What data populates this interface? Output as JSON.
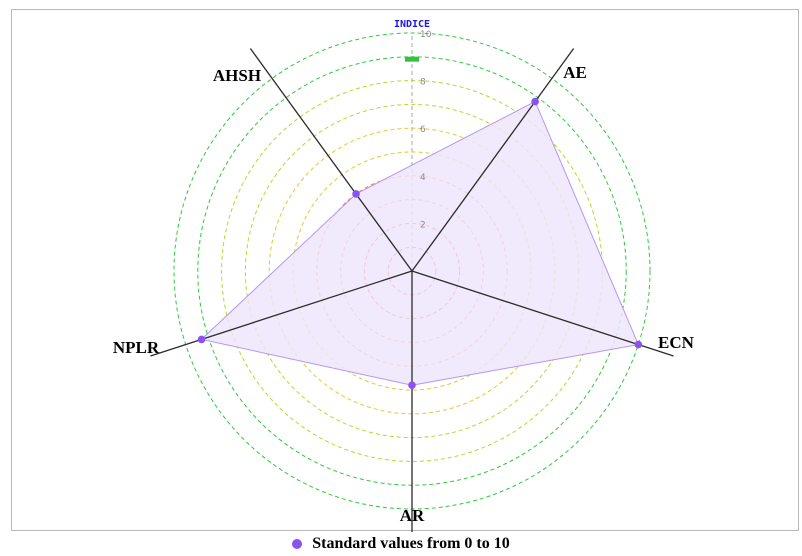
{
  "chart_data": {
    "type": "radar",
    "axis_title": "INDICE",
    "axes": [
      "AE",
      "ECN",
      "AR",
      "NPLR",
      "AHSH"
    ],
    "scale_ticks": [
      "2",
      "4",
      "6",
      "8",
      "10"
    ],
    "range": [
      0,
      10
    ],
    "series": [
      {
        "name": "Standard values from 0 to 10",
        "values": [
          8.8,
          10.0,
          4.8,
          9.3,
          4.0
        ]
      }
    ],
    "reference_marker_value": 8.9,
    "ring_colors": [
      "#e82222",
      "#e82222",
      "#f07c2a",
      "#f07c2a",
      "#e9c62e",
      "#e9c62e",
      "#b8d82c",
      "#b8d82c",
      "#2fc93a",
      "#2fc93a"
    ],
    "series_color": "#8a52ee",
    "fill_color": "#efe5fb",
    "marker_color": "#35c13f"
  },
  "legend": {
    "label": "Standard values from 0 to 10"
  }
}
